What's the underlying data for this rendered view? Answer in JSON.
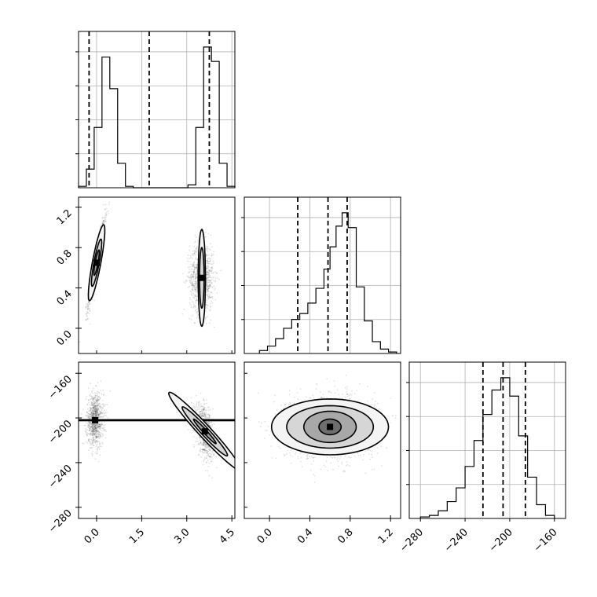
{
  "chart_data": {
    "type": "corner",
    "title": "",
    "parameters": [
      "",
      "",
      ""
    ],
    "variables": [
      {
        "range": [
          -0.6,
          4.6
        ],
        "ticks": [
          0.0,
          1.5,
          3.0,
          4.5
        ],
        "tick_labels": [
          "0.0",
          "1.5",
          "3.0",
          "4.5"
        ],
        "quantiles": [
          -0.25,
          1.75,
          3.75
        ],
        "histogram": {
          "edges": [
            -0.6,
            -0.34,
            -0.08,
            0.18,
            0.44,
            0.7,
            0.96,
            1.22,
            1.48,
            1.74,
            2.0,
            2.26,
            2.52,
            2.78,
            3.04,
            3.3,
            3.56,
            3.82,
            4.08,
            4.34,
            4.6
          ],
          "counts": [
            0.01,
            0.13,
            0.42,
            0.91,
            0.69,
            0.17,
            0.01,
            0,
            0,
            0,
            0,
            0,
            0,
            0,
            0.02,
            0.42,
            0.98,
            0.88,
            0.17,
            0.01
          ]
        }
      },
      {
        "range": [
          -0.25,
          1.3
        ],
        "ticks": [
          0.0,
          0.4,
          0.8,
          1.2
        ],
        "tick_labels": [
          "0.0",
          "0.4",
          "0.8",
          "1.2"
        ],
        "quantiles": [
          0.28,
          0.58,
          0.77
        ],
        "histogram": {
          "edges": [
            -0.1,
            -0.02,
            0.06,
            0.14,
            0.22,
            0.3,
            0.38,
            0.46,
            0.54,
            0.6,
            0.66,
            0.72,
            0.78,
            0.86,
            0.94,
            1.02,
            1.1,
            1.18,
            1.26
          ],
          "counts": [
            0.02,
            0.05,
            0.1,
            0.17,
            0.23,
            0.27,
            0.34,
            0.44,
            0.57,
            0.72,
            0.86,
            0.95,
            0.85,
            0.45,
            0.22,
            0.08,
            0.03,
            0.01
          ]
        }
      },
      {
        "range": [
          -290,
          -150
        ],
        "ticks": [
          -280,
          -240,
          -200,
          -160
        ],
        "tick_labels": [
          "−280",
          "−240",
          "−200",
          "−160"
        ],
        "quantiles": [
          -224,
          -206,
          -186
        ],
        "histogram": {
          "edges": [
            -280,
            -272,
            -264,
            -256,
            -248,
            -240,
            -232,
            -224,
            -216,
            -208,
            -200,
            -192,
            -184,
            -176,
            -168,
            -160
          ],
          "counts": [
            0.01,
            0.02,
            0.05,
            0.11,
            0.2,
            0.34,
            0.51,
            0.68,
            0.84,
            0.92,
            0.8,
            0.54,
            0.27,
            0.09,
            0.02
          ]
        }
      }
    ],
    "correlations": [
      {
        "x": 0,
        "y": 1,
        "modes": [
          {
            "center": [
              0.0,
              0.65
            ],
            "sd": [
              0.14,
              0.07
            ],
            "dir": [
              1,
              1.45
            ],
            "levels": [
              [
                0.45,
                0.12
              ],
              [
                0.28,
                0.075
              ],
              [
                0.15,
                0.04
              ]
            ],
            "n": 900
          },
          {
            "center": [
              3.5,
              0.5
            ],
            "sd": [
              0.2,
              0.17
            ],
            "dir": [
              0,
              1
            ],
            "levels": [
              [
                0.48,
                0.12
              ],
              [
                0.3,
                0.075
              ]
            ],
            "n": 1000
          }
        ]
      },
      {
        "x": 0,
        "y": 2,
        "modes": [
          {
            "center": [
              -0.05,
              -202
            ],
            "sd": [
              0.14,
              12
            ],
            "dir": [
              0,
              1
            ],
            "levels": [
              [
                0.38,
                35
              ],
              [
                0.25,
                22
              ],
              [
                0.13,
                10
              ]
            ],
            "n": 900
          },
          {
            "center": [
              3.6,
              -212
            ],
            "sd": [
              0.15,
              10
            ],
            "dir": [
              1,
              -30
            ],
            "levels": [
              [
                35,
                0.28
              ],
              [
                22,
                0.18
              ],
              [
                11,
                0.08
              ]
            ],
            "n": 900
          }
        ]
      },
      {
        "x": 1,
        "y": 2,
        "modes": [
          {
            "center": [
              0.6,
              -208
            ],
            "sd": [
              0.22,
              14
            ],
            "dir": [
              1,
              0
            ],
            "levels": [
              [
                0.58,
                25
              ],
              [
                0.43,
                19
              ],
              [
                0.26,
                14
              ],
              [
                0.11,
                7
              ]
            ],
            "n": 1800
          }
        ]
      }
    ]
  }
}
